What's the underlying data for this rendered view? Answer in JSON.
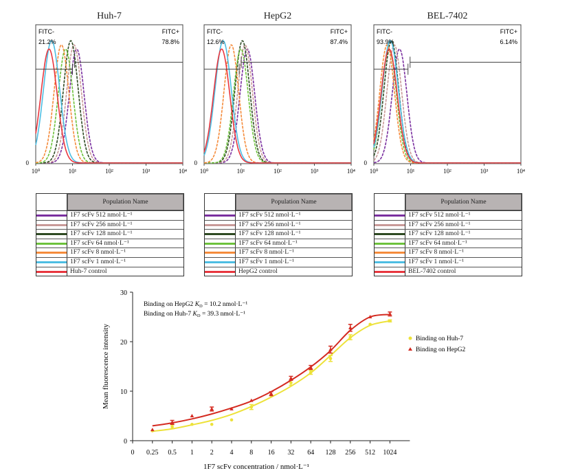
{
  "colors": {
    "512": "#7a2f9f",
    "256": "#c99a98",
    "128": "#2e4a22",
    "64": "#6dc23c",
    "8": "#f58b3b",
    "1": "#4dbde2",
    "control": "#e8363e",
    "huh7_series": "#ede23a",
    "hepg2_series": "#d42a20"
  },
  "chart_data": [
    {
      "type": "histogram",
      "title": "Huh-7",
      "x_scale": "log",
      "xlim": [
        1,
        10000
      ],
      "x_tick_labels": [
        "10⁰",
        "10¹",
        "10²",
        "10³",
        "10⁴"
      ],
      "y_tick_labels": [
        "0"
      ],
      "gate_threshold": 10,
      "gate_negative": {
        "label": "FITC-",
        "percent": "21.2%"
      },
      "gate_positive": {
        "label": "FITC+",
        "percent": "78.8%"
      },
      "series": [
        {
          "key": "control",
          "name": "Huh-7 control",
          "peak": 2.3
        },
        {
          "key": "1",
          "name": "1F7 scFv 1 nmol·L⁻¹",
          "peak": 2.7
        },
        {
          "key": "8",
          "name": "1F7 scFv 8 nmol·L⁻¹",
          "peak": 5.0
        },
        {
          "key": "64",
          "name": "1F7 scFv 64 nmol·L⁻¹",
          "peak": 6.5
        },
        {
          "key": "128",
          "name": "1F7 scFv 128 nmol·L⁻¹",
          "peak": 9.0
        },
        {
          "key": "256",
          "name": "1F7 scFv 256 nmol·L⁻¹",
          "peak": 11.0
        },
        {
          "key": "512",
          "name": "1F7 scFv 512 nmol·L⁻¹",
          "peak": 13.0
        }
      ],
      "legend_header": "Population Name"
    },
    {
      "type": "histogram",
      "title": "HepG2",
      "x_scale": "log",
      "xlim": [
        1,
        10000
      ],
      "x_tick_labels": [
        "10⁰",
        "10¹",
        "10²",
        "10³",
        "10⁴"
      ],
      "y_tick_labels": [
        "0"
      ],
      "gate_threshold": 9,
      "gate_negative": {
        "label": "FITC-",
        "percent": "12.6%"
      },
      "gate_positive": {
        "label": "FITC+",
        "percent": "87.4%"
      },
      "series": [
        {
          "key": "control",
          "name": "HepG2 control",
          "peak": 3.0
        },
        {
          "key": "1",
          "name": "1F7 scFv 1 nmol·L⁻¹",
          "peak": 3.3
        },
        {
          "key": "8",
          "name": "1F7 scFv 8 nmol·L⁻¹",
          "peak": 5.5
        },
        {
          "key": "64",
          "name": "1F7 scFv 64 nmol·L⁻¹",
          "peak": 10.0
        },
        {
          "key": "128",
          "name": "1F7 scFv 128 nmol·L⁻¹",
          "peak": 11.0
        },
        {
          "key": "256",
          "name": "1F7 scFv 256 nmol·L⁻¹",
          "peak": 13.0
        },
        {
          "key": "512",
          "name": "1F7 scFv 512 nmol·L⁻¹",
          "peak": 15.0
        }
      ],
      "legend_header": "Population Name"
    },
    {
      "type": "histogram",
      "title": "BEL-7402",
      "x_scale": "log",
      "xlim": [
        1,
        10000
      ],
      "x_tick_labels": [
        "10⁰",
        "10¹",
        "10²",
        "10³",
        "10⁴"
      ],
      "y_tick_labels": [
        "0"
      ],
      "gate_threshold": 8.5,
      "gate_negative": {
        "label": "FITC-",
        "percent": "93.9%"
      },
      "gate_positive": {
        "label": "FITC+",
        "percent": "6.14%"
      },
      "series": [
        {
          "key": "control",
          "name": "BEL-7402 control",
          "peak": 2.6
        },
        {
          "key": "1",
          "name": "1F7 scFv 1 nmol·L⁻¹",
          "peak": 2.8
        },
        {
          "key": "8",
          "name": "1F7 scFv 8 nmol·L⁻¹",
          "peak": 2.3
        },
        {
          "key": "64",
          "name": "1F7 scFv 64 nmol·L⁻¹",
          "peak": 2.6
        },
        {
          "key": "128",
          "name": "1F7 scFv 128 nmol·L⁻¹",
          "peak": 3.0
        },
        {
          "key": "256",
          "name": "1F7 scFv 256 nmol·L⁻¹",
          "peak": 3.6
        },
        {
          "key": "512",
          "name": "1F7 scFv 512 nmol·L⁻¹",
          "peak": 5.0
        }
      ],
      "legend_header": "Population Name"
    },
    {
      "type": "scatter",
      "xlabel": "1F7 scFv concentration / nmol·L⁻¹",
      "ylabel": "Mean fluorescence intensity",
      "ylim": [
        0,
        30
      ],
      "y_ticks": [
        "0",
        "10",
        "20",
        "30"
      ],
      "categories": [
        "0",
        "0.25",
        "0.5",
        "1",
        "2",
        "4",
        "8",
        "16",
        "32",
        "64",
        "128",
        "256",
        "512",
        "1024"
      ],
      "annotations": [
        "Binding on HepG2 K_D = 10.2 nmol·L⁻¹",
        "Binding on Huh-7  K_D = 39.3 nmol·L⁻¹"
      ],
      "annotation_parts": [
        {
          "prefix": "Binding on HepG2 ",
          "k": "K",
          "sub": "D",
          "suffix": " = 10.2 nmol·L⁻¹"
        },
        {
          "prefix": "Binding on Huh-7  ",
          "k": "K",
          "sub": "D",
          "suffix": " = 39.3 nmol·L⁻¹"
        }
      ],
      "legend_placement": "right",
      "series": [
        {
          "name": "Binding on Huh-7",
          "marker": "circle",
          "color_key": "huh7_series",
          "x": [
            "0.25",
            "0.5",
            "1",
            "2",
            "4",
            "8",
            "16",
            "32",
            "64",
            "128",
            "256",
            "512",
            "1024"
          ],
          "values": [
            2.0,
            2.8,
            3.3,
            3.3,
            4.2,
            6.8,
            9.2,
            11.7,
            13.8,
            16.6,
            20.9,
            23.5,
            24.2
          ],
          "errors": [
            0,
            0.4,
            0,
            0,
            0,
            0.5,
            0,
            0.5,
            0.4,
            0.6,
            0.5,
            0,
            0.2
          ],
          "fit": [
            1.9,
            2.4,
            3.2,
            4.1,
            5.3,
            6.9,
            8.8,
            11.0,
            13.7,
            17.2,
            20.8,
            23.3,
            24.2
          ]
        },
        {
          "name": "Binding on HepG2",
          "marker": "triangle",
          "color_key": "hepg2_series",
          "x": [
            "0.25",
            "0.5",
            "1",
            "2",
            "4",
            "8",
            "16",
            "32",
            "64",
            "128",
            "256",
            "512",
            "1024"
          ],
          "values": [
            2.2,
            3.7,
            5.0,
            6.4,
            6.4,
            8.1,
            9.5,
            12.6,
            14.8,
            18.4,
            22.8,
            25.0,
            25.6
          ],
          "errors": [
            0,
            0.4,
            0,
            0.4,
            0,
            0,
            0.4,
            0.4,
            0.4,
            0.7,
            0.7,
            0,
            0.4
          ],
          "fit": [
            3.0,
            3.6,
            4.4,
            5.4,
            6.6,
            8.0,
            9.9,
            12.2,
            14.9,
            18.2,
            22.3,
            25.0,
            25.5
          ]
        }
      ]
    }
  ]
}
